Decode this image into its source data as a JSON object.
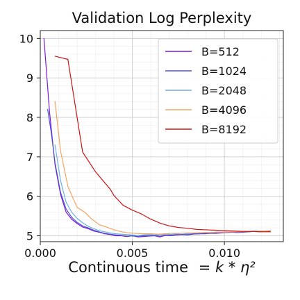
{
  "chart_data": {
    "type": "line",
    "title": "Validation Log Perplexity",
    "xlabel": "Continuous time",
    "xlabel_formula": "= k * η²",
    "ylabel": "",
    "xlim": [
      0.0,
      0.0132
    ],
    "ylim": [
      4.85,
      10.2
    ],
    "x_ticks": [
      0.0,
      0.005,
      0.01
    ],
    "x_tick_labels": [
      "0.000",
      "0.005",
      "0.010"
    ],
    "y_ticks": [
      5,
      6,
      7,
      8,
      9,
      10
    ],
    "y_tick_labels": [
      "5",
      "6",
      "7",
      "8",
      "9",
      "10"
    ],
    "grid": true,
    "minor_grid": true,
    "legend_position": "top-right",
    "series": [
      {
        "name": "B=512",
        "color": "#7b16d8",
        "x": [
          0.0002,
          0.0005,
          0.0008,
          0.0011,
          0.0014,
          0.0017,
          0.002,
          0.0023,
          0.0026,
          0.0029,
          0.0032,
          0.0035,
          0.0038,
          0.0041,
          0.0044,
          0.0047,
          0.005,
          0.0053,
          0.0056,
          0.0059,
          0.0062,
          0.0065,
          0.0068,
          0.0071,
          0.0074,
          0.0077,
          0.008,
          0.0083,
          0.0086,
          0.0089,
          0.0092,
          0.0095,
          0.0098,
          0.0101,
          0.0104,
          0.0107,
          0.011,
          0.0113,
          0.0116,
          0.0119,
          0.0122,
          0.0125
        ],
        "y": [
          10.0,
          8.15,
          6.8,
          6.05,
          5.6,
          5.42,
          5.31,
          5.22,
          5.18,
          5.12,
          5.09,
          5.05,
          5.03,
          5.0,
          5.0,
          4.98,
          5.0,
          4.97,
          4.98,
          4.99,
          5.0,
          4.97,
          5.01,
          5.0,
          5.02,
          5.03,
          5.02,
          5.04,
          5.05,
          5.05,
          5.06,
          5.06,
          5.07,
          5.08,
          5.09,
          5.08,
          5.09,
          5.1,
          5.11,
          5.1,
          5.11,
          5.12
        ]
      },
      {
        "name": "B=1024",
        "color": "#4b4fd1",
        "x": [
          0.0004,
          0.0006,
          0.0008,
          0.0011,
          0.0014,
          0.0017,
          0.002,
          0.0023,
          0.0026,
          0.0029,
          0.0032,
          0.0035,
          0.0038,
          0.0041,
          0.0044,
          0.0047,
          0.005,
          0.0053,
          0.0056,
          0.0059,
          0.0062,
          0.0065,
          0.0068,
          0.0071,
          0.0074,
          0.0077,
          0.008,
          0.0083,
          0.0086,
          0.0089,
          0.0092,
          0.0095,
          0.0098,
          0.0101,
          0.0104,
          0.0107,
          0.011,
          0.0113,
          0.0116,
          0.0119,
          0.0122,
          0.0125
        ],
        "y": [
          8.2,
          7.6,
          6.85,
          6.1,
          5.68,
          5.47,
          5.34,
          5.25,
          5.2,
          5.14,
          5.1,
          5.06,
          5.04,
          5.02,
          5.01,
          4.99,
          5.0,
          4.98,
          5.0,
          5.0,
          5.01,
          4.99,
          5.02,
          5.01,
          5.03,
          5.03,
          5.03,
          5.05,
          5.05,
          5.06,
          5.06,
          5.07,
          5.08,
          5.08,
          5.09,
          5.09,
          5.1,
          5.1,
          5.11,
          5.11,
          5.12,
          5.12
        ]
      },
      {
        "name": "B=2048",
        "color": "#6ab0e0",
        "x": [
          0.0008,
          0.0011,
          0.0014,
          0.0017,
          0.002,
          0.0023,
          0.0026,
          0.0029,
          0.0032,
          0.0035,
          0.0038,
          0.0041,
          0.0044,
          0.0047,
          0.005,
          0.0053,
          0.0056,
          0.0059,
          0.0062,
          0.0065,
          0.0068,
          0.0071,
          0.0074,
          0.0077,
          0.008,
          0.0083,
          0.0086,
          0.0089,
          0.0092,
          0.0095,
          0.0098,
          0.0101,
          0.0104,
          0.0107,
          0.011,
          0.0113,
          0.0116,
          0.0119,
          0.0122,
          0.0125
        ],
        "y": [
          7.3,
          6.4,
          5.85,
          5.6,
          5.44,
          5.33,
          5.24,
          5.18,
          5.13,
          5.1,
          5.07,
          5.05,
          5.04,
          5.03,
          5.02,
          5.01,
          5.02,
          5.03,
          5.02,
          5.03,
          5.04,
          5.03,
          5.05,
          5.06,
          5.05,
          5.07,
          5.07,
          5.08,
          5.08,
          5.09,
          5.09,
          5.1,
          5.1,
          5.1,
          5.11,
          5.11,
          5.12,
          5.12,
          5.12,
          5.13
        ]
      },
      {
        "name": "B=4096",
        "color": "#f4a35e",
        "x": [
          0.0008,
          0.0011,
          0.0015,
          0.002,
          0.0024,
          0.0028,
          0.0032,
          0.0036,
          0.004,
          0.0044,
          0.0048,
          0.0052,
          0.0056,
          0.006,
          0.0064,
          0.0068,
          0.0072,
          0.0076,
          0.008,
          0.0084,
          0.0088,
          0.0092,
          0.0096,
          0.01,
          0.0104,
          0.0108,
          0.0112,
          0.0116,
          0.012,
          0.0125
        ],
        "y": [
          8.4,
          7.15,
          6.25,
          5.72,
          5.6,
          5.42,
          5.28,
          5.22,
          5.15,
          5.1,
          5.07,
          5.06,
          5.05,
          5.05,
          5.04,
          5.05,
          5.06,
          5.06,
          5.07,
          5.07,
          5.08,
          5.08,
          5.09,
          5.09,
          5.1,
          5.1,
          5.11,
          5.11,
          5.12,
          5.12
        ]
      },
      {
        "name": "B=8192",
        "color": "#c81414",
        "x": [
          0.0008,
          0.0015,
          0.0023,
          0.003,
          0.0038,
          0.004,
          0.0045,
          0.005,
          0.0055,
          0.006,
          0.0065,
          0.007,
          0.0075,
          0.008,
          0.0085,
          0.009,
          0.0095,
          0.01,
          0.0105,
          0.011,
          0.0115,
          0.012,
          0.0125
        ],
        "y": [
          9.55,
          9.47,
          7.12,
          6.62,
          6.18,
          6.02,
          5.77,
          5.65,
          5.55,
          5.42,
          5.32,
          5.25,
          5.21,
          5.19,
          5.16,
          5.15,
          5.14,
          5.13,
          5.12,
          5.11,
          5.11,
          5.1,
          5.1
        ]
      }
    ]
  }
}
